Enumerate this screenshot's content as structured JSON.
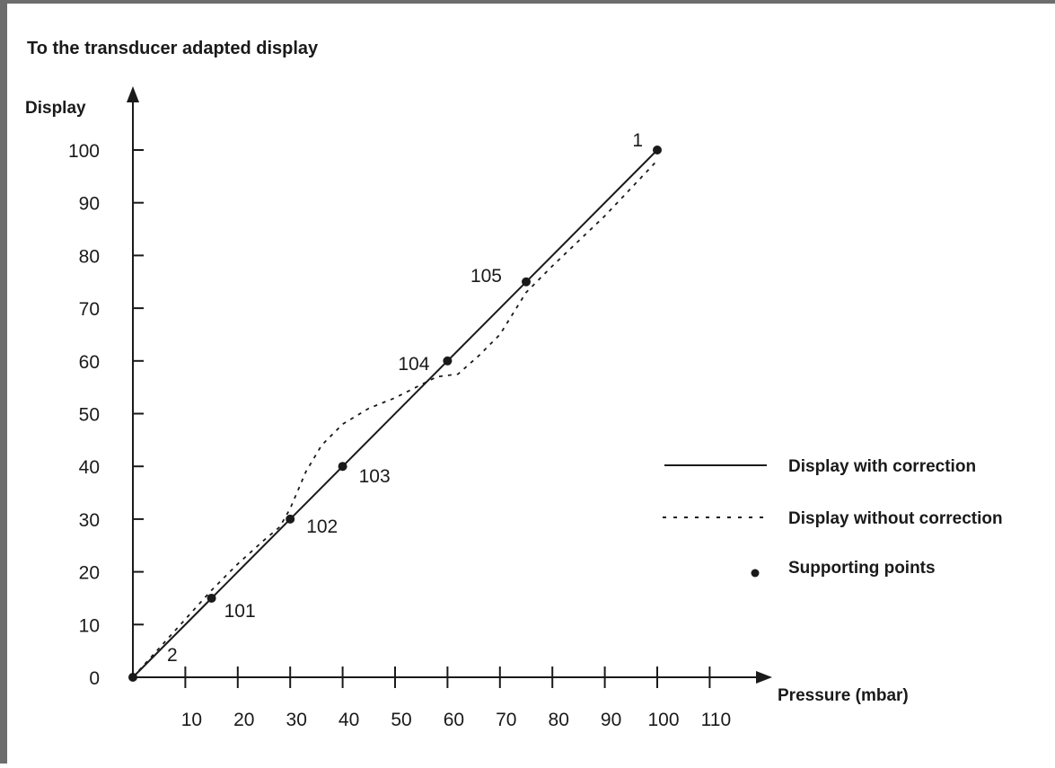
{
  "chart_data": {
    "type": "line",
    "title": "To the transducer adapted display",
    "xlabel": "Pressure (mbar)",
    "ylabel": "Display",
    "xlim": [
      0,
      120
    ],
    "ylim": [
      0,
      105
    ],
    "x_ticks": [
      10,
      20,
      30,
      40,
      50,
      60,
      70,
      80,
      90,
      100,
      110
    ],
    "y_ticks": [
      0,
      10,
      20,
      30,
      40,
      50,
      60,
      70,
      80,
      90,
      100
    ],
    "grid": false,
    "legend_position": "right",
    "series": [
      {
        "name": "Display with correction",
        "style": "solid",
        "x": [
          0,
          15,
          30,
          40,
          60,
          75,
          100
        ],
        "y": [
          0,
          15,
          30,
          40,
          60,
          75,
          100
        ]
      },
      {
        "name": "Display without correction",
        "style": "dotted",
        "x": [
          0,
          5,
          10,
          15,
          20,
          25,
          28,
          30,
          33,
          36,
          40,
          45,
          50,
          55,
          58,
          62,
          66,
          70,
          75,
          80,
          90,
          100
        ],
        "y": [
          0,
          5.5,
          11,
          16.5,
          21.5,
          26,
          28.5,
          32,
          39,
          44,
          48,
          51,
          53,
          55.5,
          57,
          57.5,
          61,
          65,
          73,
          78,
          87.5,
          98
        ]
      }
    ],
    "supporting_points": [
      {
        "x": 0,
        "y": 0,
        "label": "2"
      },
      {
        "x": 15,
        "y": 15,
        "label": "101"
      },
      {
        "x": 30,
        "y": 30,
        "label": "102"
      },
      {
        "x": 40,
        "y": 40,
        "label": "103"
      },
      {
        "x": 60,
        "y": 60,
        "label": "104"
      },
      {
        "x": 75,
        "y": 75,
        "label": "105"
      },
      {
        "x": 100,
        "y": 100,
        "label": "1"
      }
    ],
    "legend": {
      "solid": "Display with correction",
      "dotted": "Display without correction",
      "points": "Supporting points"
    }
  }
}
